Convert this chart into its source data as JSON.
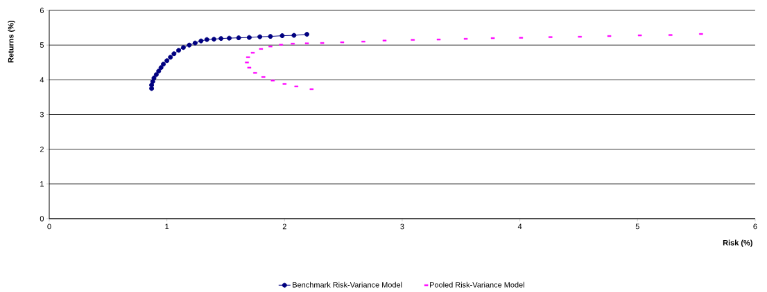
{
  "chart_data": {
    "type": "line",
    "xlabel": "Risk (%)",
    "ylabel": "Returns (%)",
    "xlim": [
      0,
      6
    ],
    "ylim": [
      0,
      6
    ],
    "xticks": [
      0,
      1,
      2,
      3,
      4,
      5,
      6
    ],
    "yticks": [
      0,
      1,
      2,
      3,
      4,
      5,
      6
    ],
    "grid": "y",
    "legend": "bottom",
    "series": [
      {
        "name": "Benchmark Risk-Variance Model",
        "color": "#000080",
        "marker": "circle",
        "line_style": "solid",
        "x": [
          0.87,
          0.87,
          0.88,
          0.89,
          0.91,
          0.93,
          0.95,
          0.97,
          1.0,
          1.03,
          1.06,
          1.1,
          1.14,
          1.19,
          1.24,
          1.29,
          1.34,
          1.4,
          1.46,
          1.53,
          1.61,
          1.7,
          1.79,
          1.88,
          1.98,
          2.08,
          2.19
        ],
        "values": [
          3.75,
          3.85,
          3.95,
          4.05,
          4.15,
          4.25,
          4.35,
          4.45,
          4.55,
          4.65,
          4.75,
          4.85,
          4.93,
          5.0,
          5.06,
          5.12,
          5.16,
          5.17,
          5.19,
          5.2,
          5.21,
          5.22,
          5.24,
          5.25,
          5.27,
          5.28,
          5.31
        ]
      },
      {
        "name": "Pooled Risk-Variance Model",
        "type": "scatter",
        "color": "#ff00ff",
        "marker": "square",
        "x": [
          2.23,
          2.1,
          2.0,
          1.9,
          1.82,
          1.75,
          1.7,
          1.68,
          1.69,
          1.73,
          1.8,
          1.88,
          1.97,
          2.07,
          2.19,
          2.32,
          2.49,
          2.67,
          2.85,
          3.09,
          3.31,
          3.54,
          3.77,
          4.01,
          4.26,
          4.51,
          4.76,
          5.02,
          5.28,
          5.54
        ],
        "values": [
          3.73,
          3.81,
          3.88,
          3.98,
          4.08,
          4.2,
          4.35,
          4.5,
          4.65,
          4.78,
          4.89,
          4.96,
          5.01,
          5.04,
          5.05,
          5.06,
          5.08,
          5.1,
          5.13,
          5.15,
          5.16,
          5.18,
          5.2,
          5.21,
          5.23,
          5.24,
          5.26,
          5.28,
          5.29,
          5.32
        ]
      }
    ]
  }
}
